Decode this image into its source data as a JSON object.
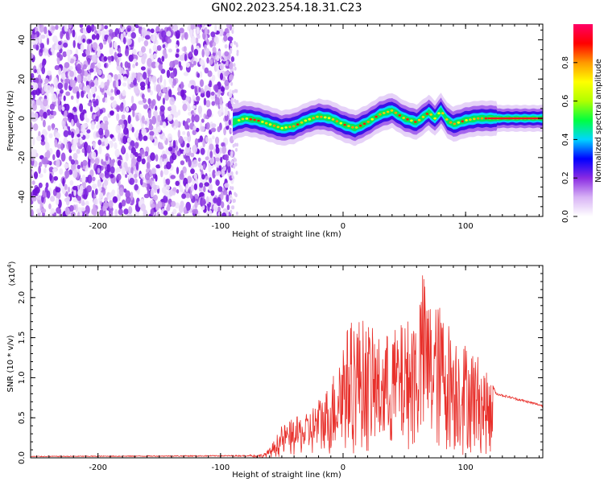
{
  "title": "GN02.2023.254.18.31.C23",
  "chart_data": [
    {
      "type": "heatmap",
      "xlabel": "Height of straight line (km)",
      "ylabel": "Frequency (Hz)",
      "xlim": [
        -255,
        163
      ],
      "ylim": [
        -50,
        48
      ],
      "xticks": [
        -200,
        -100,
        0,
        100
      ],
      "yticks": [
        -40,
        -20,
        0,
        20,
        40
      ],
      "grid": false,
      "colorbar": {
        "label": "Normalized spectral amplitude",
        "range": [
          0.0,
          1.0
        ],
        "ticks": [
          "0.0",
          "0.2",
          "0.4",
          "0.6",
          "0.8"
        ],
        "colors": [
          "#ffffff",
          "#d8b3f5",
          "#8a2be2",
          "#0000ff",
          "#00d5ff",
          "#00ff40",
          "#b0ff00",
          "#ffff00",
          "#ff9900",
          "#ff0000",
          "#ff0066"
        ]
      },
      "noise_region_x": [
        -255,
        -90
      ],
      "ridge": {
        "x": [
          -90,
          -80,
          -70,
          -60,
          -50,
          -40,
          -30,
          -20,
          -10,
          0,
          10,
          20,
          30,
          40,
          50,
          60,
          70,
          75,
          80,
          85,
          90,
          95,
          100,
          110,
          120,
          163
        ],
        "y": [
          -2,
          0,
          -1,
          -3,
          -5,
          -4,
          -1,
          1,
          0,
          -3,
          -5,
          -2,
          2,
          4,
          0,
          -2,
          3,
          0,
          4,
          -1,
          -3,
          -2,
          -1,
          0,
          0,
          0
        ]
      }
    },
    {
      "type": "line",
      "xlabel": "Height of straight line (km)",
      "ylabel": "SNR (10 * v/v)",
      "y_multiplier_label": "(x10",
      "y_multiplier_exp": "4",
      "xlim": [
        -255,
        163
      ],
      "ylim": [
        0.0,
        2.4
      ],
      "xticks": [
        -200,
        -100,
        0,
        100
      ],
      "yticks": [
        "0.0",
        "0.5",
        "1.0",
        "1.5",
        "2.0"
      ],
      "color": "#e8302b",
      "envelope": {
        "x": [
          -255,
          -80,
          -65,
          -60,
          -50,
          -40,
          -30,
          -20,
          -10,
          0,
          10,
          20,
          30,
          40,
          50,
          60,
          65,
          70,
          80,
          90,
          100,
          110,
          125,
          163
        ],
        "y": [
          0.02,
          0.03,
          0.05,
          0.12,
          0.4,
          0.5,
          0.55,
          0.75,
          0.95,
          1.55,
          1.8,
          1.7,
          1.5,
          1.6,
          1.7,
          1.85,
          2.35,
          2.0,
          1.9,
          1.6,
          1.45,
          1.3,
          0.8,
          0.65
        ]
      }
    }
  ]
}
